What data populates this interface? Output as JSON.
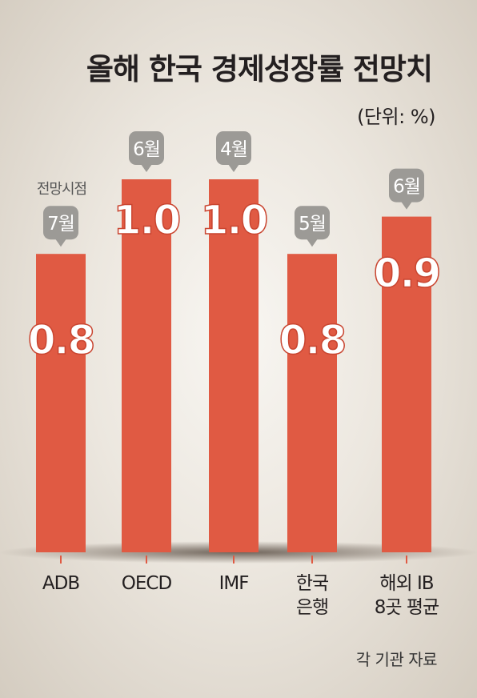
{
  "title": "올해 한국 경제성장률 전망치",
  "unit": "(단위: %)",
  "forecast_label": "전망시점",
  "source": "각 기관 자료",
  "colors": {
    "bar": "#e05a43",
    "badge": "#9c9a96",
    "badge_text": "#ffffff",
    "value_text": "#ffffff",
    "value_outline": "#c94530"
  },
  "chart_data": {
    "type": "bar",
    "categories": [
      [
        "ADB"
      ],
      [
        "OECD"
      ],
      [
        "IMF"
      ],
      [
        "한국",
        "은행"
      ],
      [
        "해외 IB",
        "8곳 평균"
      ]
    ],
    "values": [
      0.8,
      1.0,
      1.0,
      0.8,
      0.9
    ],
    "value_labels": [
      "0.8",
      "1.0",
      "1.0",
      "0.8",
      "0.9"
    ],
    "forecast_month": [
      "7월",
      "6월",
      "4월",
      "5월",
      "6월"
    ],
    "ylim": [
      0,
      1.0
    ]
  }
}
